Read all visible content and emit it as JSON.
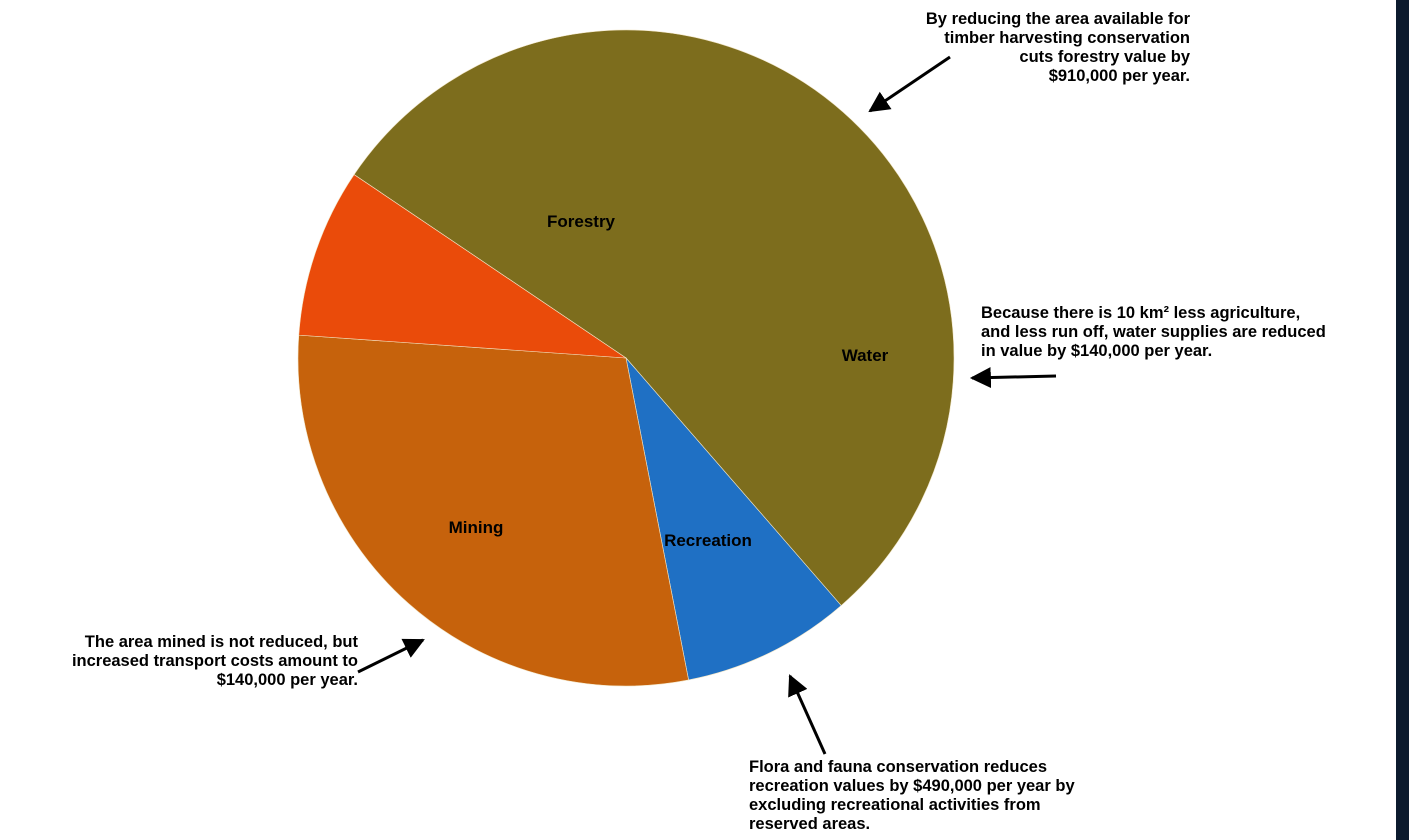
{
  "chart_data": {
    "type": "pie",
    "title": "",
    "slices": [
      {
        "label": "Forestry",
        "value": 910000,
        "color": "#7d6d1d"
      },
      {
        "label": "Water",
        "value": 140000,
        "color": "#1f70c4"
      },
      {
        "label": "Recreation",
        "value": 490000,
        "color": "#c6620c"
      },
      {
        "label": "Mining",
        "value": 140000,
        "color": "#ea4b0a"
      }
    ],
    "annotations": {
      "forestry": [
        "By reducing the area available for",
        "timber harvesting conservation",
        "cuts forestry value by",
        "$910,000 per year."
      ],
      "water": [
        "Because there is 10 km² less agriculture,",
        "and less run off, water supplies are reduced",
        "in value by $140,000 per year."
      ],
      "mining": [
        "The area mined is not reduced, but",
        "increased transport costs amount to",
        "$140,000 per year."
      ],
      "recreation": [
        "Flora and fauna conservation reduces",
        "recreation values by $490,000 per year by",
        "excluding recreational activities from",
        "reserved areas."
      ]
    }
  }
}
